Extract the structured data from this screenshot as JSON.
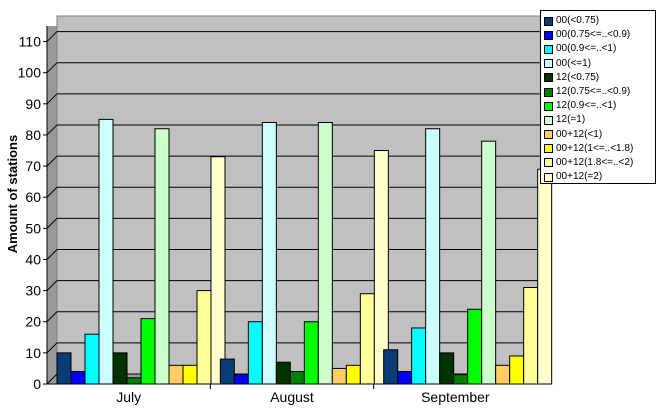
{
  "chart_data": {
    "type": "bar",
    "categories": [
      "July",
      "August",
      "September"
    ],
    "ylabel": "Amount of stations",
    "ylim": [
      0,
      115
    ],
    "yticks": [
      0,
      10,
      20,
      30,
      40,
      50,
      60,
      70,
      80,
      90,
      100,
      110
    ],
    "grid": true,
    "legend_position": "top-right",
    "plot_background": "#c0c0c0",
    "series": [
      {
        "name": "00(<0.75)",
        "color": "#0a3d78",
        "values": [
          10,
          8,
          11
        ]
      },
      {
        "name": "00(0.75<=..<0.9)",
        "color": "#0000ff",
        "values": [
          4,
          3,
          4
        ]
      },
      {
        "name": "00(0.9<=..<1)",
        "color": "#00ffff",
        "values": [
          16,
          20,
          18
        ]
      },
      {
        "name": "00(<=1)",
        "color": "#ccffff",
        "values": [
          85,
          84,
          82
        ]
      },
      {
        "name": "12(<0.75)",
        "color": "#003300",
        "values": [
          10,
          7,
          10
        ]
      },
      {
        "name": "12(0.75<=..<0.9)",
        "color": "#008000",
        "values": [
          2,
          4,
          3
        ]
      },
      {
        "name": "12(0.9<=..<1)",
        "color": "#00ff00",
        "values": [
          21,
          20,
          24
        ]
      },
      {
        "name": "12(=1)",
        "color": "#ccffcc",
        "values": [
          82,
          84,
          78
        ]
      },
      {
        "name": "00+12(<1)",
        "color": "#ffcc66",
        "values": [
          6,
          5,
          6
        ]
      },
      {
        "name": "00+12(1<=..<1.8)",
        "color": "#ffff00",
        "values": [
          6,
          6,
          9
        ]
      },
      {
        "name": "00+12(1.8<=..<2)",
        "color": "#ffff99",
        "values": [
          30,
          29,
          31
        ]
      },
      {
        "name": "00+12(=2)",
        "color": "#ffffcc",
        "values": [
          73,
          75,
          69
        ]
      }
    ]
  }
}
